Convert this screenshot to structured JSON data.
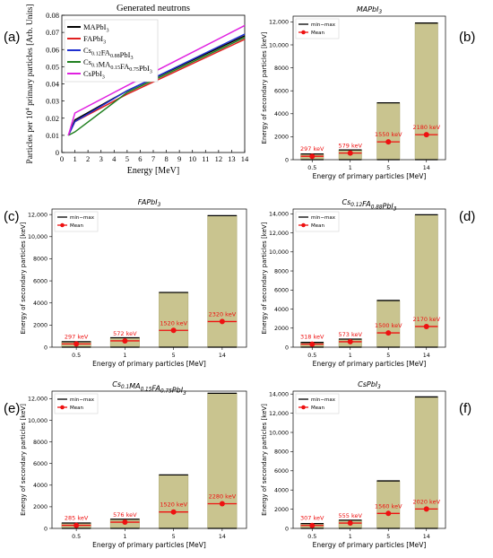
{
  "panel_letters": [
    "(a)",
    "(b)",
    "(c)",
    "(d)",
    "(e)",
    "(f)"
  ],
  "chart_data": [
    {
      "type": "line",
      "title": "Generated neutrons",
      "xlabel": "Energy [MeV]",
      "ylabel": "Particles per 10^4 primary particles [Arb. Units]",
      "xlim": [
        0,
        14
      ],
      "ylim": [
        0,
        0.08
      ],
      "xticks": [
        "0",
        "1",
        "2",
        "3",
        "4",
        "5",
        "6",
        "7",
        "8",
        "9",
        "10",
        "11",
        "12",
        "13",
        "14"
      ],
      "yticks": [
        "0",
        "0.01",
        "0.02",
        "0.03",
        "0.04",
        "0.05",
        "0.06",
        "0.07",
        "0.08"
      ],
      "legend_position": "top-left",
      "series": [
        {
          "name": "MAPbI3",
          "label_main": "MAPbI",
          "label_sub": "3",
          "color": "#000000",
          "x": [
            0.5,
            1,
            5,
            14
          ],
          "y": [
            0.01,
            0.019,
            0.036,
            0.068
          ]
        },
        {
          "name": "FAPbI3",
          "label_main": "FAPbI",
          "label_sub": "3",
          "color": "#e02020",
          "x": [
            0.5,
            1,
            5,
            14
          ],
          "y": [
            0.01,
            0.018,
            0.034,
            0.066
          ]
        },
        {
          "name": "Cs0.12FA0.88PbI3",
          "label_main": "Cs",
          "label_sub": "0.12",
          "label_main2": "FA",
          "label_sub2": "0.88",
          "label_main3": "PbI",
          "label_sub3": "3",
          "color": "#2030d0",
          "x": [
            0.5,
            1,
            5,
            14
          ],
          "y": [
            0.01,
            0.018,
            0.036,
            0.069
          ]
        },
        {
          "name": "Cs0.1MA0.15FA0.75PbI3",
          "label_main": "Cs",
          "label_sub": "0.1",
          "label_main2": "MA",
          "label_sub2": "0.15",
          "label_main3": "FA",
          "label_sub3": "0.75",
          "label_main4": "PbI",
          "label_sub4": "3",
          "color": "#208020",
          "x": [
            0.5,
            1,
            5,
            14
          ],
          "y": [
            0.01,
            0.012,
            0.035,
            0.067
          ]
        },
        {
          "name": "CsPbI3",
          "label_main": "CsPbI",
          "label_sub": "3",
          "color": "#e020e0",
          "x": [
            0.5,
            1,
            5,
            14
          ],
          "y": [
            0.01,
            0.023,
            0.039,
            0.074
          ]
        }
      ]
    },
    {
      "type": "bar",
      "title_main": "MAPbI",
      "title_sub": "3",
      "xlabel": "Energy of primary particles [MeV]",
      "ylabel": "Energy of secondary particles [keV]",
      "ylim": [
        0,
        12500
      ],
      "yticks": [
        "0",
        "2000",
        "4000",
        "6000",
        "8000",
        "10,000",
        "12,000"
      ],
      "ytick_values": [
        0,
        2000,
        4000,
        6000,
        8000,
        10000,
        12000
      ],
      "categories": [
        "0.5",
        "1",
        "5",
        "14"
      ],
      "min": [
        0,
        0,
        0,
        0
      ],
      "max": [
        500,
        850,
        4950,
        11900
      ],
      "mean": [
        297,
        579,
        1550,
        2180
      ],
      "mean_labels": [
        "297 keV",
        "579 keV",
        "1550 keV",
        "2180 keV"
      ],
      "legend": [
        "min−max",
        "Mean"
      ]
    },
    {
      "type": "bar",
      "title_main": "FAPbI",
      "title_sub": "3",
      "xlabel": "Energy of primary particles [MeV]",
      "ylabel": "Energy of secondary particles [keV]",
      "ylim": [
        0,
        12500
      ],
      "yticks": [
        "0",
        "2000",
        "4000",
        "6000",
        "8000",
        "10,000",
        "12,000"
      ],
      "ytick_values": [
        0,
        2000,
        4000,
        6000,
        8000,
        10000,
        12000
      ],
      "categories": [
        "0.5",
        "1",
        "5",
        "14"
      ],
      "min": [
        0,
        0,
        0,
        0
      ],
      "max": [
        500,
        850,
        4950,
        11900
      ],
      "mean": [
        297,
        572,
        1520,
        2320
      ],
      "mean_labels": [
        "297 keV",
        "572 keV",
        "1520 keV",
        "2320 keV"
      ],
      "legend": [
        "min−max",
        "Mean"
      ]
    },
    {
      "type": "bar",
      "title_main": "Cs",
      "title_sub": "0.12",
      "title_main2": "FA",
      "title_sub2": "0.88",
      "title_main3": "PbI",
      "title_sub3": "3",
      "xlabel": "Energy of primary particles [MeV]",
      "ylabel": "Energy of secondary particles [keV]",
      "ylim": [
        0,
        14500
      ],
      "yticks": [
        "0",
        "2000",
        "4000",
        "6000",
        "8000",
        "10,000",
        "12,000",
        "14,000"
      ],
      "ytick_values": [
        0,
        2000,
        4000,
        6000,
        8000,
        10000,
        12000,
        14000
      ],
      "categories": [
        "0.5",
        "1",
        "5",
        "14"
      ],
      "min": [
        0,
        0,
        0,
        0
      ],
      "max": [
        500,
        850,
        4900,
        13900
      ],
      "mean": [
        318,
        573,
        1500,
        2170
      ],
      "mean_labels": [
        "318 keV",
        "573 keV",
        "1500 keV",
        "2170 keV"
      ],
      "legend": [
        "min−max",
        "Mean"
      ]
    },
    {
      "type": "bar",
      "title_main": "Cs",
      "title_sub": "0.1",
      "title_main2": "MA",
      "title_sub2": "0.15",
      "title_main3": "FA",
      "title_sub3": "0.75",
      "title_main4": "PbI",
      "title_sub4": "3",
      "xlabel": "Energy of primary particles [MeV]",
      "ylabel": "Energy of secondary particles [keV]",
      "ylim": [
        0,
        12700
      ],
      "yticks": [
        "0",
        "2000",
        "4000",
        "6000",
        "8000",
        "10,000",
        "12,000"
      ],
      "ytick_values": [
        0,
        2000,
        4000,
        6000,
        8000,
        10000,
        12000
      ],
      "categories": [
        "0.5",
        "1",
        "5",
        "14"
      ],
      "min": [
        0,
        0,
        0,
        0
      ],
      "max": [
        500,
        850,
        4950,
        12500
      ],
      "mean": [
        285,
        576,
        1520,
        2280
      ],
      "mean_labels": [
        "285 keV",
        "576 keV",
        "1520 keV",
        "2280 keV"
      ],
      "legend": [
        "min−max",
        "Mean"
      ]
    },
    {
      "type": "bar",
      "title_main": "CsPbI",
      "title_sub": "3",
      "xlabel": "Energy of primary particles [MeV]",
      "ylabel": "Energy of secondary particles [keV]",
      "ylim": [
        0,
        14300
      ],
      "yticks": [
        "0",
        "2000",
        "4000",
        "6000",
        "8000",
        "10,000",
        "12,000",
        "14,000"
      ],
      "ytick_values": [
        0,
        2000,
        4000,
        6000,
        8000,
        10000,
        12000,
        14000
      ],
      "categories": [
        "0.5",
        "1",
        "5",
        "14"
      ],
      "min": [
        0,
        0,
        0,
        0
      ],
      "max": [
        500,
        850,
        4950,
        13700
      ],
      "mean": [
        307,
        555,
        1560,
        2020
      ],
      "mean_labels": [
        "307 keV",
        "555 keV",
        "1560 keV",
        "2020 keV"
      ],
      "legend": [
        "min−max",
        "Mean"
      ]
    }
  ],
  "colors": {
    "bar_fill": "#c9c48f",
    "bar_edge": "#a8a36c",
    "mean": "#ee1111",
    "minmax_line": "#000000"
  }
}
